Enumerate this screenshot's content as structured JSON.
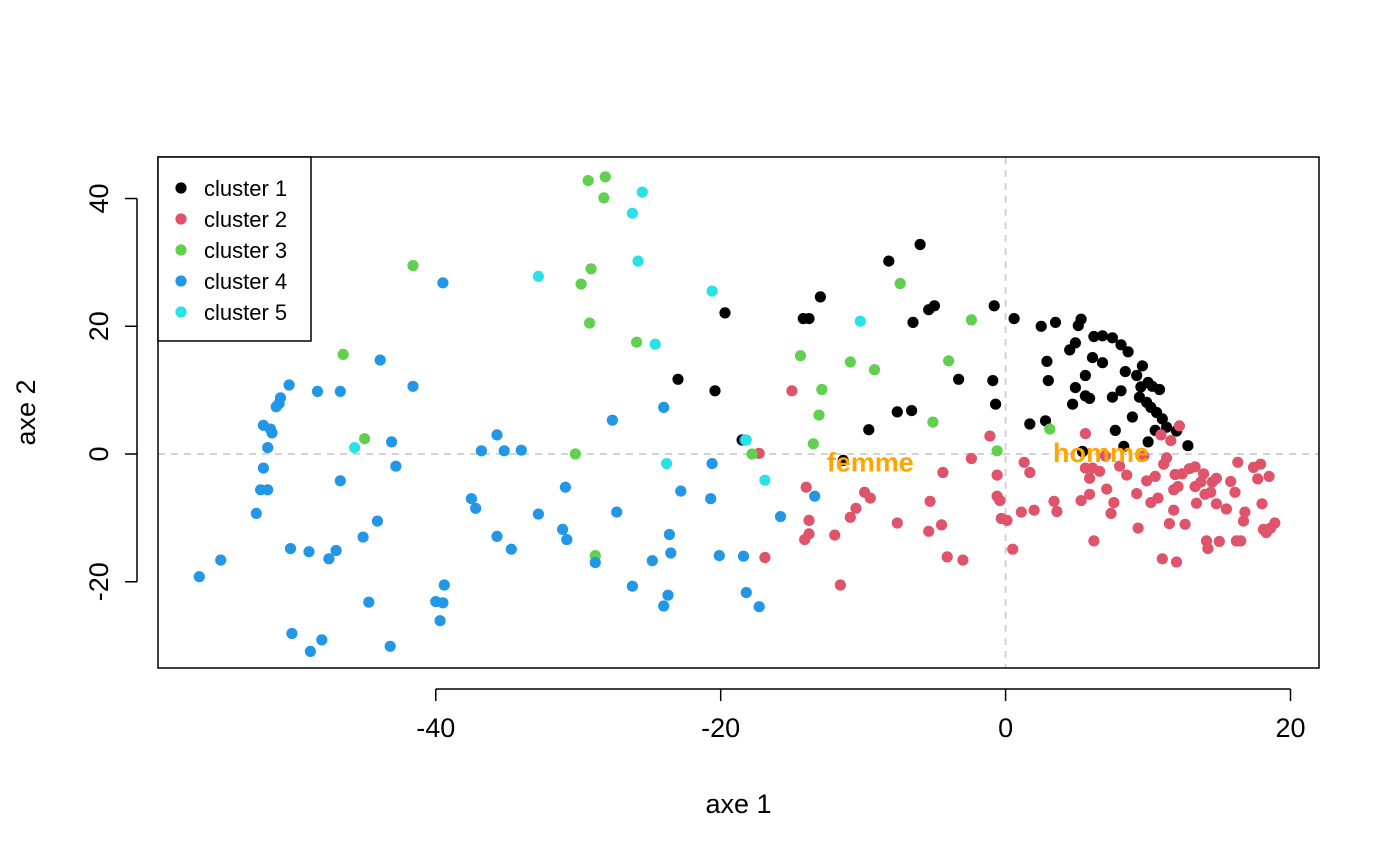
{
  "chart_data": {
    "type": "scatter",
    "title": "",
    "xlabel": "axe 1",
    "ylabel": "axe 2",
    "xlim": [
      -59.5,
      22
    ],
    "ylim": [
      -33.5,
      46.5
    ],
    "x_ticks": [
      -40,
      -20,
      0,
      20
    ],
    "y_ticks": [
      -20,
      0,
      20,
      40
    ],
    "x_tick_labels": [
      "-40",
      "-20",
      "0",
      "20"
    ],
    "y_tick_labels": [
      "-20",
      "0",
      "20",
      "40"
    ],
    "grid": false,
    "reference_lines": {
      "x": 0,
      "y": 0,
      "color": "#d3d3d3",
      "dash": true
    },
    "legend": {
      "position": "top-left",
      "entries": [
        {
          "label": "cluster 1",
          "color": "#000000"
        },
        {
          "label": "cluster 2",
          "color": "#df536b"
        },
        {
          "label": "cluster 3",
          "color": "#61d04f"
        },
        {
          "label": "cluster 4",
          "color": "#2297e6"
        },
        {
          "label": "cluster 5",
          "color": "#28e2e5"
        }
      ]
    },
    "annotations": [
      {
        "text": "femme",
        "x": -9.5,
        "y": -1.2,
        "color": "#ffa500"
      },
      {
        "text": "homme",
        "x": 6.7,
        "y": 0.3,
        "color": "#ffa500"
      }
    ],
    "series": [
      {
        "name": "cluster 1",
        "color": "#000000",
        "points": [
          [
            -6,
            32.8
          ],
          [
            -8.2,
            30.2
          ],
          [
            -13,
            24.6
          ],
          [
            -19.7,
            22.1
          ],
          [
            -14.2,
            21.2
          ],
          [
            -13.8,
            21.2
          ],
          [
            -5,
            23.2
          ],
          [
            -5.4,
            22.6
          ],
          [
            -6.5,
            20.6
          ],
          [
            -0.8,
            23.2
          ],
          [
            0.6,
            21.2
          ],
          [
            2.5,
            20
          ],
          [
            3.5,
            20.6
          ],
          [
            5.1,
            20.1
          ],
          [
            5.3,
            21.1
          ],
          [
            4.9,
            17.4
          ],
          [
            4.5,
            16.3
          ],
          [
            6.2,
            18.4
          ],
          [
            6.8,
            18.5
          ],
          [
            7.5,
            18.2
          ],
          [
            8.1,
            17.1
          ],
          [
            8.6,
            16
          ],
          [
            6.1,
            15.1
          ],
          [
            6.8,
            14.3
          ],
          [
            2.9,
            14.5
          ],
          [
            3,
            11.5
          ],
          [
            4.9,
            10.4
          ],
          [
            5.6,
            12.3
          ],
          [
            5.6,
            9.1
          ],
          [
            5.9,
            8.7
          ],
          [
            4.7,
            7.8
          ],
          [
            7.5,
            8.9
          ],
          [
            8.1,
            9.9
          ],
          [
            8.4,
            12.9
          ],
          [
            9.2,
            12.3
          ],
          [
            9.6,
            13.8
          ],
          [
            9.5,
            10.5
          ],
          [
            10,
            11.2
          ],
          [
            10.3,
            10.6
          ],
          [
            10.8,
            10.1
          ],
          [
            9.4,
            8.9
          ],
          [
            9.9,
            8.1
          ],
          [
            10.2,
            7.3
          ],
          [
            10.6,
            6.5
          ],
          [
            11,
            5.5
          ],
          [
            11.3,
            4.2
          ],
          [
            12,
            3.6
          ],
          [
            12.8,
            1.3
          ],
          [
            10.5,
            3.7
          ],
          [
            10,
            1.9
          ],
          [
            8.3,
            1.2
          ],
          [
            8.9,
            5.8
          ],
          [
            7.7,
            3.7
          ],
          [
            5.4,
            0.4
          ],
          [
            2.8,
            5.2
          ],
          [
            1.7,
            4.7
          ],
          [
            -0.9,
            11.5
          ],
          [
            -0.7,
            7.8
          ],
          [
            -3.3,
            11.7
          ],
          [
            -6.6,
            6.8
          ],
          [
            -7.6,
            6.6
          ],
          [
            -9.6,
            3.8
          ],
          [
            -11.4,
            -1
          ],
          [
            -23,
            11.7
          ],
          [
            -20.4,
            9.9
          ],
          [
            -18.5,
            2.2
          ]
        ]
      },
      {
        "name": "cluster 2",
        "color": "#df536b",
        "points": [
          [
            -15,
            9.9
          ],
          [
            -17.3,
            0.1
          ],
          [
            -16.9,
            -16.2
          ],
          [
            -11.6,
            -20.5
          ],
          [
            -14.1,
            -13.4
          ],
          [
            -13.8,
            -12.5
          ],
          [
            -13.8,
            -10.4
          ],
          [
            -14,
            -5.2
          ],
          [
            -12,
            -12.7
          ],
          [
            -10.9,
            -9.9
          ],
          [
            -10.5,
            -8.5
          ],
          [
            -9.9,
            -6
          ],
          [
            -9.5,
            -6.9
          ],
          [
            -7.6,
            -10.8
          ],
          [
            -5.4,
            -12.1
          ],
          [
            -5.3,
            -7.4
          ],
          [
            -4.5,
            -11.1
          ],
          [
            -4.4,
            -2.9
          ],
          [
            -4.1,
            -16.1
          ],
          [
            -3,
            -16.6
          ],
          [
            -2.4,
            -0.7
          ],
          [
            -1.1,
            2.8
          ],
          [
            -0.6,
            -3.3
          ],
          [
            -0.6,
            -6.6
          ],
          [
            -0.4,
            -7.3
          ],
          [
            -0.3,
            -10.1
          ],
          [
            0.1,
            -10.4
          ],
          [
            0.5,
            -14.9
          ],
          [
            1.1,
            -9.1
          ],
          [
            1.3,
            -1.3
          ],
          [
            1.7,
            -2.9
          ],
          [
            2,
            -8.8
          ],
          [
            3.4,
            -7.4
          ],
          [
            3.6,
            -9
          ],
          [
            5.3,
            -7.3
          ],
          [
            5.6,
            -2.2
          ],
          [
            5.6,
            3.2
          ],
          [
            5.9,
            -3.8
          ],
          [
            5.9,
            -6.3
          ],
          [
            6.1,
            -2.2
          ],
          [
            6.2,
            -13.6
          ],
          [
            6.6,
            -2.7
          ],
          [
            7,
            -0.3
          ],
          [
            7.1,
            -5.5
          ],
          [
            7.4,
            -9.3
          ],
          [
            7.6,
            -7.6
          ],
          [
            8,
            -1.9
          ],
          [
            8.5,
            -3.3
          ],
          [
            9.2,
            -6.2
          ],
          [
            9.3,
            -11.6
          ],
          [
            9.7,
            -0.3
          ],
          [
            9.9,
            -4.2
          ],
          [
            10.2,
            -7.6
          ],
          [
            10.5,
            -3.5
          ],
          [
            10.7,
            -6.9
          ],
          [
            11.1,
            -1.6
          ],
          [
            11.3,
            -0.6
          ],
          [
            11.5,
            -10.9
          ],
          [
            11.8,
            -5.6
          ],
          [
            11.8,
            -8.8
          ],
          [
            11.9,
            -3.2
          ],
          [
            12,
            -16.9
          ],
          [
            12.1,
            -5.1
          ],
          [
            12.4,
            -3.1
          ],
          [
            12.6,
            -11
          ],
          [
            12.9,
            -2.3
          ],
          [
            13.3,
            -2
          ],
          [
            13.3,
            -5.1
          ],
          [
            13.4,
            -7.7
          ],
          [
            13.7,
            -4.4
          ],
          [
            13.9,
            -3.1
          ],
          [
            14,
            -6.3
          ],
          [
            14.1,
            -13.6
          ],
          [
            14.2,
            -14.8
          ],
          [
            14.4,
            -6
          ],
          [
            14.5,
            -4.4
          ],
          [
            14.8,
            -3.8
          ],
          [
            14.8,
            -7.8
          ],
          [
            15,
            -13.7
          ],
          [
            15.5,
            -8.6
          ],
          [
            15.8,
            -4.3
          ],
          [
            16.1,
            -6
          ],
          [
            16.2,
            -13.6
          ],
          [
            16.3,
            -1.3
          ],
          [
            16.5,
            -13.6
          ],
          [
            16.7,
            -10.5
          ],
          [
            16.8,
            -9.1
          ],
          [
            17.4,
            -2.1
          ],
          [
            17.7,
            -3.9
          ],
          [
            17.9,
            -1.6
          ],
          [
            18,
            -7.8
          ],
          [
            18.1,
            -11.8
          ],
          [
            18.3,
            -12.3
          ],
          [
            18.5,
            -3.5
          ],
          [
            18.6,
            -11.6
          ],
          [
            18.9,
            -10.8
          ],
          [
            11,
            -16.4
          ],
          [
            12.2,
            4.4
          ],
          [
            11.6,
            2.1
          ],
          [
            10.9,
            3
          ]
        ]
      },
      {
        "name": "cluster 3",
        "color": "#61d04f",
        "points": [
          [
            -29.3,
            42.8
          ],
          [
            -28.1,
            43.4
          ],
          [
            -28.2,
            40.1
          ],
          [
            -29.1,
            29
          ],
          [
            -29.8,
            26.6
          ],
          [
            -29.2,
            20.5
          ],
          [
            -41.6,
            29.5
          ],
          [
            -25.9,
            17.5
          ],
          [
            -46.5,
            15.6
          ],
          [
            -45,
            2.4
          ],
          [
            -30.2,
            0
          ],
          [
            -28.8,
            -15.9
          ],
          [
            -17.8,
            0
          ],
          [
            -14.4,
            15.4
          ],
          [
            -12.9,
            10.1
          ],
          [
            -13.1,
            6.1
          ],
          [
            -13.5,
            1.6
          ],
          [
            -10.9,
            14.4
          ],
          [
            -9.2,
            13.2
          ],
          [
            -7.4,
            26.7
          ],
          [
            -4,
            14.6
          ],
          [
            -2.4,
            21
          ],
          [
            -5.1,
            5
          ],
          [
            -0.6,
            0.5
          ],
          [
            3.1,
            3.9
          ]
        ]
      },
      {
        "name": "cluster 4",
        "color": "#2297e6",
        "points": [
          [
            -39.5,
            26.8
          ],
          [
            -43.9,
            14.7
          ],
          [
            -41.6,
            10.6
          ],
          [
            -48.3,
            9.8
          ],
          [
            -46.7,
            9.8
          ],
          [
            -50.3,
            10.8
          ],
          [
            -50.9,
            8.8
          ],
          [
            -51,
            7.9
          ],
          [
            -51.2,
            7.4
          ],
          [
            -52.1,
            4.5
          ],
          [
            -51.6,
            3.9
          ],
          [
            -51.5,
            3.3
          ],
          [
            -51.8,
            1
          ],
          [
            -52.1,
            -2.2
          ],
          [
            -52.3,
            -5.6
          ],
          [
            -51.8,
            -5.6
          ],
          [
            -52.6,
            -9.3
          ],
          [
            -46.7,
            -4.2
          ],
          [
            -43.1,
            1.9
          ],
          [
            -42.8,
            -1.9
          ],
          [
            -44.1,
            -10.5
          ],
          [
            -45.1,
            -13
          ],
          [
            -47,
            -15.1
          ],
          [
            -47.5,
            -16.4
          ],
          [
            -48.9,
            -15.3
          ],
          [
            -50.2,
            -14.8
          ],
          [
            -55.1,
            -16.6
          ],
          [
            -56.6,
            -19.2
          ],
          [
            -44.7,
            -23.2
          ],
          [
            -40,
            -23.1
          ],
          [
            -39.5,
            -23.3
          ],
          [
            -39.4,
            -20.5
          ],
          [
            -39.7,
            -26.1
          ],
          [
            -43.2,
            -30.1
          ],
          [
            -48,
            -29.1
          ],
          [
            -48.8,
            -30.9
          ],
          [
            -50.1,
            -28.1
          ],
          [
            -35.7,
            3
          ],
          [
            -36.8,
            0.5
          ],
          [
            -35.2,
            0.5
          ],
          [
            -34,
            0.6
          ],
          [
            -37.5,
            -7
          ],
          [
            -37.2,
            -8.5
          ],
          [
            -35.7,
            -12.9
          ],
          [
            -34.7,
            -14.9
          ],
          [
            -32.8,
            -9.4
          ],
          [
            -30.9,
            -5.2
          ],
          [
            -31.1,
            -11.8
          ],
          [
            -30.8,
            -13.4
          ],
          [
            -28.8,
            -17
          ],
          [
            -27.6,
            5.3
          ],
          [
            -27.3,
            -9.1
          ],
          [
            -26.2,
            -20.7
          ],
          [
            -24.8,
            -16.7
          ],
          [
            -24,
            7.3
          ],
          [
            -23.6,
            -12.6
          ],
          [
            -23.5,
            -15.5
          ],
          [
            -23.7,
            -22.1
          ],
          [
            -24,
            -23.8
          ],
          [
            -22.8,
            -5.8
          ],
          [
            -20.6,
            -1.5
          ],
          [
            -20.7,
            -7
          ],
          [
            -20.1,
            -15.9
          ],
          [
            -18.4,
            -16
          ],
          [
            -18.2,
            -21.7
          ],
          [
            -17.3,
            -23.9
          ],
          [
            -15.8,
            -9.8
          ],
          [
            -13.4,
            -6.6
          ],
          [
            -18.3,
            2.2
          ]
        ]
      },
      {
        "name": "cluster 5",
        "color": "#28e2e5",
        "points": [
          [
            -25.5,
            41
          ],
          [
            -26.2,
            37.7
          ],
          [
            -25.8,
            30.2
          ],
          [
            -32.8,
            27.8
          ],
          [
            -24.6,
            17.2
          ],
          [
            -20.6,
            25.5
          ],
          [
            -10.2,
            20.8
          ],
          [
            -45.7,
            1
          ],
          [
            -23.8,
            -1.5
          ],
          [
            -18.2,
            2.2
          ],
          [
            -16.9,
            -4.1
          ]
        ]
      }
    ]
  }
}
